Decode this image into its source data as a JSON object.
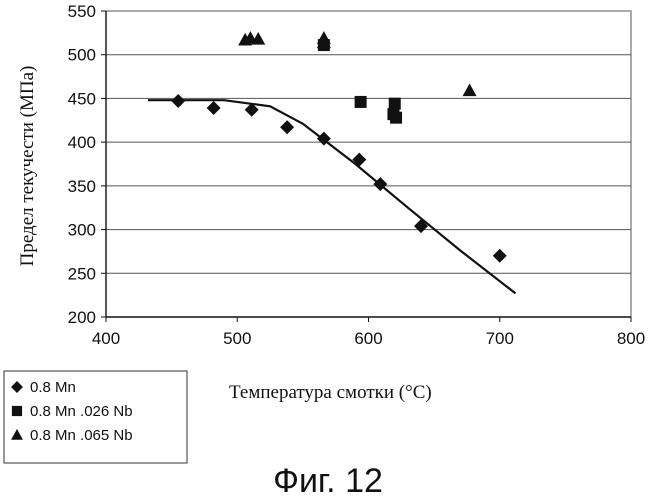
{
  "chart_data": {
    "type": "scatter",
    "title": "",
    "xlabel": "Температура смотки (°C)",
    "ylabel": "Предел текучести (МПа)",
    "xlim": [
      400,
      800
    ],
    "ylim": [
      200,
      550
    ],
    "xticks": [
      "400",
      "500",
      "600",
      "700",
      "800"
    ],
    "yticks": [
      "200",
      "250",
      "300",
      "350",
      "400",
      "450",
      "500",
      "550"
    ],
    "grid": true,
    "legend_position": "bottom-left",
    "series": [
      {
        "name": "0.8 Mn",
        "marker": "diamond",
        "points": [
          {
            "x": 455,
            "y": 447
          },
          {
            "x": 482,
            "y": 439
          },
          {
            "x": 511,
            "y": 437
          },
          {
            "x": 538,
            "y": 417
          },
          {
            "x": 566,
            "y": 404
          },
          {
            "x": 593,
            "y": 380
          },
          {
            "x": 609,
            "y": 352
          },
          {
            "x": 640,
            "y": 304
          },
          {
            "x": 700,
            "y": 270
          }
        ]
      },
      {
        "name": "0.8 Mn .026 Nb",
        "marker": "square",
        "points": [
          {
            "x": 566,
            "y": 511
          },
          {
            "x": 594,
            "y": 446
          },
          {
            "x": 620,
            "y": 444
          },
          {
            "x": 619,
            "y": 432
          },
          {
            "x": 621,
            "y": 428
          }
        ]
      },
      {
        "name": "0.8 Mn .065 Nb",
        "marker": "triangle",
        "points": [
          {
            "x": 506,
            "y": 517
          },
          {
            "x": 510,
            "y": 519
          },
          {
            "x": 516,
            "y": 518
          },
          {
            "x": 566,
            "y": 519
          },
          {
            "x": 566,
            "y": 514
          },
          {
            "x": 677,
            "y": 459
          }
        ]
      }
    ],
    "trend_line": {
      "name": "trend",
      "points": [
        {
          "x": 432,
          "y": 448
        },
        {
          "x": 490,
          "y": 448
        },
        {
          "x": 525,
          "y": 441
        },
        {
          "x": 550,
          "y": 421
        },
        {
          "x": 590,
          "y": 375
        },
        {
          "x": 630,
          "y": 325
        },
        {
          "x": 670,
          "y": 276
        },
        {
          "x": 712,
          "y": 227
        }
      ]
    }
  },
  "caption": "Фиг. 12"
}
